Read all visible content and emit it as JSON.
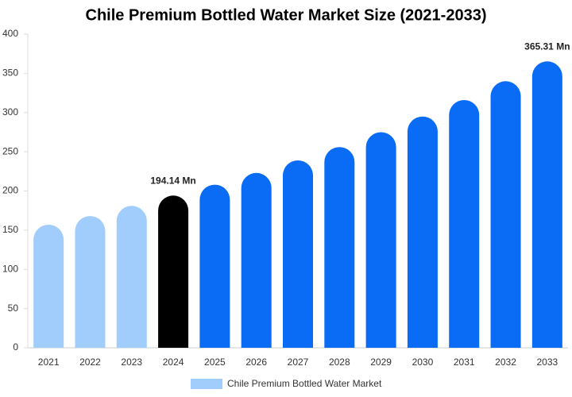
{
  "chart_data": {
    "type": "bar",
    "title": "Chile Premium Bottled Water Market Size (2021-2033)",
    "categories": [
      "2021",
      "2022",
      "2023",
      "2024",
      "2025",
      "2026",
      "2027",
      "2028",
      "2029",
      "2030",
      "2031",
      "2032",
      "2033"
    ],
    "series": [
      {
        "name": "Chile Premium Bottled Water Market",
        "color": "#a0cdfc",
        "values": [
          157,
          168,
          181,
          194.14,
          208,
          223,
          239,
          256,
          275,
          295,
          316,
          340,
          365.31
        ],
        "colors": [
          "#a0cdfc",
          "#a0cdfc",
          "#a0cdfc",
          "#000000",
          "#0a6cf5",
          "#0a6cf5",
          "#0a6cf5",
          "#0a6cf5",
          "#0a6cf5",
          "#0a6cf5",
          "#0a6cf5",
          "#0a6cf5",
          "#0a6cf5"
        ],
        "value_labels": [
          null,
          null,
          null,
          "194.14 Mn",
          null,
          null,
          null,
          null,
          null,
          null,
          null,
          null,
          "365.31 Mn"
        ]
      }
    ],
    "ylim": [
      0,
      400
    ],
    "yticks": [
      0,
      50,
      100,
      150,
      200,
      250,
      300,
      350,
      400
    ]
  }
}
